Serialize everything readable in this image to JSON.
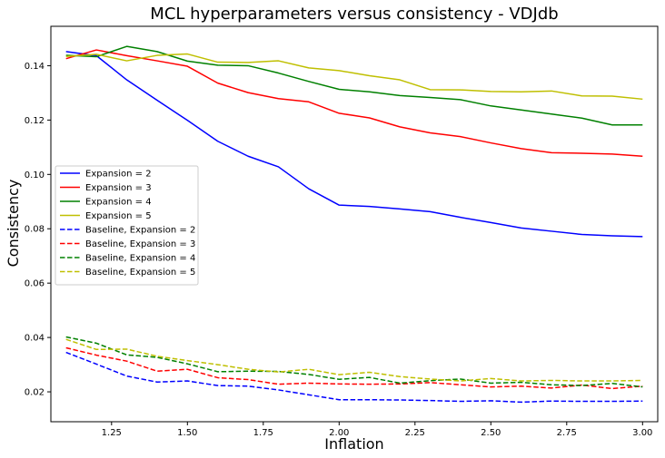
{
  "chart_data": {
    "type": "line",
    "title": "MCL hyperparameters versus consistency - VDJdb",
    "xlabel": "Inflation",
    "ylabel": "Consistency",
    "xlim": [
      1.05,
      3.05
    ],
    "ylim": [
      0.009,
      0.1545
    ],
    "xticks": [
      1.25,
      1.5,
      1.75,
      2.0,
      2.25,
      2.5,
      2.75,
      3.0
    ],
    "xtick_labels": [
      "1.25",
      "1.50",
      "1.75",
      "2.00",
      "2.25",
      "2.50",
      "2.75",
      "3.00"
    ],
    "yticks": [
      0.02,
      0.04,
      0.06,
      0.08,
      0.1,
      0.12,
      0.14
    ],
    "ytick_labels": [
      "0.02",
      "0.04",
      "0.06",
      "0.08",
      "0.10",
      "0.12",
      "0.14"
    ],
    "grid": false,
    "legend_position": "center-left",
    "x": [
      1.1,
      1.2,
      1.3,
      1.4,
      1.5,
      1.6,
      1.7,
      1.8,
      1.9,
      2.0,
      2.1,
      2.2,
      2.3,
      2.4,
      2.5,
      2.6,
      2.7,
      2.8,
      2.9,
      3.0
    ],
    "series": [
      {
        "name": "Expansion = 2",
        "color": "#0000ff",
        "dash": "solid",
        "values": [
          0.1452,
          0.1437,
          0.1348,
          0.1273,
          0.1199,
          0.1122,
          0.1067,
          0.1028,
          0.0947,
          0.0887,
          0.0882,
          0.0873,
          0.0863,
          0.0842,
          0.0823,
          0.0803,
          0.0791,
          0.0779,
          0.0774,
          0.0771
        ]
      },
      {
        "name": "Expansion = 3",
        "color": "#ff0000",
        "dash": "solid",
        "values": [
          0.1426,
          0.1458,
          0.1437,
          0.1418,
          0.1398,
          0.1336,
          0.1301,
          0.1279,
          0.1267,
          0.1225,
          0.1208,
          0.1175,
          0.1153,
          0.1139,
          0.1116,
          0.1095,
          0.108,
          0.1078,
          0.1075,
          0.1067
        ]
      },
      {
        "name": "Expansion = 4",
        "color": "#008000",
        "dash": "solid",
        "values": [
          0.1438,
          0.1433,
          0.1471,
          0.1452,
          0.1417,
          0.1402,
          0.14,
          0.1373,
          0.1342,
          0.1313,
          0.1304,
          0.129,
          0.1283,
          0.1275,
          0.1252,
          0.1237,
          0.1222,
          0.1207,
          0.1182,
          0.1182
        ]
      },
      {
        "name": "Expansion = 5",
        "color": "#bfbf00",
        "dash": "solid",
        "values": [
          0.1434,
          0.1442,
          0.1418,
          0.1438,
          0.1443,
          0.1413,
          0.1412,
          0.1418,
          0.1392,
          0.1382,
          0.1363,
          0.1348,
          0.1312,
          0.1311,
          0.1305,
          0.1304,
          0.1307,
          0.1289,
          0.1288,
          0.1277
        ]
      },
      {
        "name": "Baseline, Expansion = 2",
        "color": "#0000ff",
        "dash": "dashed",
        "values": [
          0.0345,
          0.0302,
          0.0258,
          0.0236,
          0.024,
          0.0223,
          0.0221,
          0.0207,
          0.0189,
          0.0171,
          0.0171,
          0.017,
          0.0168,
          0.0165,
          0.0167,
          0.0162,
          0.0166,
          0.0165,
          0.0165,
          0.0166
        ]
      },
      {
        "name": "Baseline, Expansion = 3",
        "color": "#ff0000",
        "dash": "dashed",
        "values": [
          0.0362,
          0.0335,
          0.0313,
          0.0276,
          0.0283,
          0.0252,
          0.0245,
          0.0228,
          0.0232,
          0.0229,
          0.0228,
          0.0229,
          0.0234,
          0.0226,
          0.0218,
          0.0221,
          0.0214,
          0.0225,
          0.0212,
          0.0221
        ]
      },
      {
        "name": "Baseline, Expansion = 4",
        "color": "#008000",
        "dash": "dashed",
        "values": [
          0.0402,
          0.0379,
          0.0336,
          0.0327,
          0.0303,
          0.0274,
          0.0276,
          0.0275,
          0.0264,
          0.0246,
          0.0253,
          0.0232,
          0.0241,
          0.0247,
          0.0232,
          0.0235,
          0.0226,
          0.0223,
          0.0231,
          0.0218
        ]
      },
      {
        "name": "Baseline, Expansion = 5",
        "color": "#bfbf00",
        "dash": "dashed",
        "values": [
          0.0393,
          0.0356,
          0.0357,
          0.0331,
          0.0315,
          0.03,
          0.0283,
          0.0273,
          0.0283,
          0.0263,
          0.0272,
          0.0256,
          0.0247,
          0.024,
          0.0249,
          0.024,
          0.0242,
          0.024,
          0.024,
          0.0242
        ]
      }
    ]
  }
}
